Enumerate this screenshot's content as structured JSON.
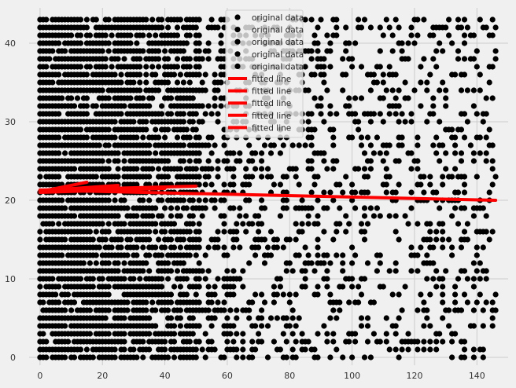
{
  "chart_data": {
    "type": "scatter",
    "title": "",
    "xlabel": "",
    "ylabel": "",
    "xlim": [
      -3.5,
      150
    ],
    "ylim": [
      -1,
      44.5
    ],
    "xticks": [
      0,
      20,
      40,
      60,
      80,
      100,
      120,
      140
    ],
    "yticks": [
      0,
      10,
      20,
      30,
      40
    ],
    "grid": true,
    "background": "#f0f0f0",
    "grid_color": "#cbcbcb",
    "point_color": "#000000",
    "line_color": "#ff0000",
    "scatter": {
      "name": "original data",
      "y_levels": "integers 0 to 43",
      "x_range": [
        0,
        146
      ],
      "density": "dense for x < 50, sparser for x > 60"
    },
    "fitted_lines": [
      {
        "name": "fitted line",
        "x": [
          0,
          146
        ],
        "y": [
          21.3,
          20.0
        ]
      },
      {
        "name": "fitted line",
        "x": [
          0,
          50
        ],
        "y": [
          21.3,
          21.8
        ]
      },
      {
        "name": "fitted line",
        "x": [
          0,
          15
        ],
        "y": [
          21.1,
          22.3
        ]
      },
      {
        "name": "fitted line",
        "x": [
          0,
          40
        ],
        "y": [
          21.0,
          21.5
        ]
      },
      {
        "name": "fitted line",
        "x": [
          0,
          25
        ],
        "y": [
          21.2,
          21.9
        ]
      }
    ],
    "legend": {
      "placement": "top-center",
      "entries": [
        {
          "label": "original data",
          "marker": "point"
        },
        {
          "label": "original data",
          "marker": "point"
        },
        {
          "label": "original data",
          "marker": "point"
        },
        {
          "label": "original data",
          "marker": "point"
        },
        {
          "label": "original data",
          "marker": "point"
        },
        {
          "label": "fitted line",
          "marker": "line"
        },
        {
          "label": "fitted line",
          "marker": "line"
        },
        {
          "label": "fitted line",
          "marker": "line"
        },
        {
          "label": "fitted line",
          "marker": "line"
        },
        {
          "label": "fitted line",
          "marker": "line"
        }
      ]
    }
  }
}
